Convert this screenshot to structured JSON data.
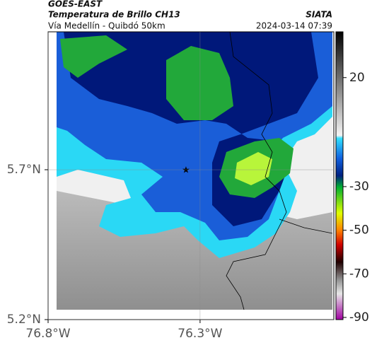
{
  "header": {
    "satellite": "GOES-EAST",
    "title": "Temperatura de Brillo CH13",
    "subtitle": "Vía Medellín - Quibdó 50km",
    "source": "SIATA",
    "timestamp": "2024-03-14 07:39"
  },
  "map": {
    "xlim": [
      -76.8,
      -75.86
    ],
    "ylim": [
      5.2,
      6.16
    ],
    "xticks": [
      {
        "value": -76.8,
        "label": "76.8°W"
      },
      {
        "value": -76.3,
        "label": "76.3°W"
      }
    ],
    "yticks": [
      {
        "value": 5.2,
        "label": "5.2°N"
      },
      {
        "value": 5.7,
        "label": "5.7°N"
      }
    ]
  },
  "colorbar": {
    "lim": [
      -91,
      41
    ],
    "ticks": [
      20,
      -30,
      -50,
      -70,
      -90
    ]
  }
}
